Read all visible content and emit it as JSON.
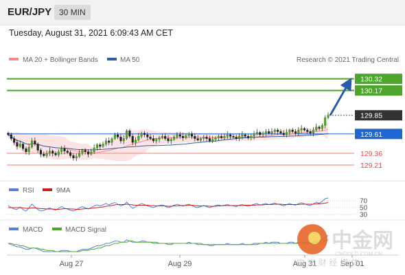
{
  "header": {
    "symbol": "EUR/JPY",
    "timeframe": "30 MIN"
  },
  "datetime": "Tuesday, August 31, 2021 6:09:43 AM CET",
  "copyright": "Research © 2021 Trading Central",
  "watermark": {
    "brand": "中金网",
    "site": "CNGOLD.COM.CN",
    "tagline": "中 文 财 经 媒 体"
  },
  "chart_data": [
    {
      "type": "candlestick",
      "legend": [
        {
          "label": "MA 20 + Bollinger Bands",
          "color": "#f08c8c"
        },
        {
          "label": "MA 50",
          "color": "#2e5f9e"
        }
      ],
      "ylim": [
        129.05,
        130.45
      ],
      "x_ticks": [
        "Aug 27",
        "Aug 29",
        "Aug 31",
        "Sep 01"
      ],
      "price_levels": [
        {
          "value": 130.32,
          "label": "130.32",
          "kind": "resistance",
          "color": "#4ea52b"
        },
        {
          "value": 130.17,
          "label": "130.17",
          "kind": "resistance",
          "color": "#4ea52b"
        },
        {
          "value": 129.85,
          "label": "129.85",
          "kind": "last",
          "color": "#333333"
        },
        {
          "value": 129.61,
          "label": "129.61",
          "kind": "pivot",
          "color": "#1f66d1"
        },
        {
          "value": 129.36,
          "label": "129.36",
          "kind": "support",
          "color": "#e0454a"
        },
        {
          "value": 129.21,
          "label": "129.21",
          "kind": "support",
          "color": "#e0454a"
        }
      ],
      "close": [
        129.6,
        129.55,
        129.5,
        129.45,
        129.48,
        129.42,
        129.38,
        129.44,
        129.52,
        129.48,
        129.4,
        129.35,
        129.33,
        129.36,
        129.39,
        129.36,
        129.34,
        129.38,
        129.42,
        129.39,
        129.37,
        129.33,
        129.3,
        129.32,
        129.36,
        129.4,
        129.38,
        129.35,
        129.38,
        129.43,
        129.47,
        129.45,
        129.48,
        129.52,
        129.5,
        129.55,
        129.6,
        129.57,
        129.52,
        129.55,
        129.65,
        129.58,
        129.5,
        129.53,
        129.58,
        129.62,
        129.6,
        129.57,
        129.55,
        129.52,
        129.54,
        129.56,
        129.58,
        129.55,
        129.52,
        129.54,
        129.57,
        129.6,
        129.58,
        129.56,
        129.59,
        129.61,
        129.58,
        129.55,
        129.53,
        129.55,
        129.57,
        129.55,
        129.52,
        129.54,
        129.56,
        129.58,
        129.56,
        129.58,
        129.6,
        129.58,
        129.57,
        129.55,
        129.58,
        129.6,
        129.58,
        129.56,
        129.58,
        129.61,
        129.63,
        129.6,
        129.62,
        129.64,
        129.62,
        129.64,
        129.66,
        129.64,
        129.62,
        129.6,
        129.63,
        129.66,
        129.64,
        129.62,
        129.66,
        129.68,
        129.66,
        129.64,
        129.62,
        129.66,
        129.7,
        129.68,
        129.72,
        129.82,
        129.85
      ]
    },
    {
      "type": "line",
      "legend": [
        {
          "label": "RSI",
          "color": "#5a7fd6"
        },
        {
          "label": "9MA",
          "color": "#cc1d1d"
        }
      ],
      "ylim": [
        20,
        80
      ],
      "levels": [
        70,
        50,
        30
      ],
      "series": [
        {
          "name": "RSI",
          "values": [
            56,
            50,
            46,
            45,
            52,
            44,
            40,
            49,
            60,
            52,
            44,
            40,
            42,
            46,
            49,
            45,
            43,
            48,
            53,
            48,
            46,
            42,
            40,
            44,
            49,
            53,
            50,
            46,
            50,
            55,
            58,
            55,
            58,
            62,
            58,
            62,
            65,
            60,
            55,
            58,
            66,
            56,
            48,
            52,
            58,
            62,
            59,
            55,
            53,
            50,
            54,
            56,
            58,
            54,
            50,
            53,
            57,
            60,
            57,
            54,
            58,
            60,
            56,
            52,
            50,
            53,
            56,
            53,
            50,
            53,
            56,
            58,
            55,
            57,
            59,
            56,
            55,
            53,
            57,
            59,
            56,
            54,
            57,
            60,
            62,
            57,
            60,
            62,
            59,
            61,
            63,
            60,
            58,
            55,
            59,
            62,
            59,
            57,
            62,
            64,
            61,
            58,
            56,
            61,
            66,
            63,
            68,
            76,
            78
          ]
        },
        {
          "name": "9MA",
          "values": [
            50,
            50,
            50,
            50,
            50,
            49,
            48,
            48,
            49,
            49,
            48,
            47,
            47,
            46,
            46,
            46,
            45,
            45,
            46,
            47,
            47,
            46,
            46,
            45,
            45,
            46,
            47,
            47,
            48,
            49,
            50,
            51,
            52,
            54,
            55,
            56,
            58,
            59,
            59,
            59,
            60,
            59,
            58,
            57,
            57,
            57,
            57,
            57,
            56,
            56,
            55,
            55,
            55,
            55,
            54,
            54,
            55,
            55,
            56,
            56,
            56,
            57,
            57,
            56,
            55,
            55,
            55,
            55,
            54,
            54,
            54,
            55,
            55,
            56,
            56,
            56,
            56,
            56,
            56,
            56,
            57,
            57,
            57,
            57,
            58,
            58,
            58,
            59,
            59,
            59,
            60,
            60,
            60,
            59,
            59,
            59,
            59,
            59,
            59,
            60,
            60,
            60,
            60,
            60,
            61,
            61,
            62,
            63,
            65
          ]
        }
      ]
    },
    {
      "type": "line",
      "legend": [
        {
          "label": "MACD",
          "color": "#5a7fd6"
        },
        {
          "label": "MACD Signal",
          "color": "#4ea52b"
        }
      ],
      "series": [
        {
          "name": "MACD",
          "values": [
            0.02,
            0.01,
            0.0,
            -0.01,
            -0.01,
            -0.02,
            -0.03,
            -0.03,
            -0.02,
            -0.02,
            -0.03,
            -0.04,
            -0.05,
            -0.05,
            -0.05,
            -0.05,
            -0.05,
            -0.05,
            -0.04,
            -0.04,
            -0.04,
            -0.05,
            -0.05,
            -0.05,
            -0.04,
            -0.03,
            -0.03,
            -0.03,
            -0.02,
            -0.01,
            0.0,
            0.0,
            0.01,
            0.02,
            0.02,
            0.03,
            0.04,
            0.04,
            0.03,
            0.03,
            0.05,
            0.04,
            0.03,
            0.03,
            0.03,
            0.04,
            0.04,
            0.03,
            0.03,
            0.02,
            0.02,
            0.02,
            0.02,
            0.02,
            0.01,
            0.01,
            0.02,
            0.02,
            0.02,
            0.02,
            0.02,
            0.03,
            0.02,
            0.02,
            0.01,
            0.01,
            0.01,
            0.01,
            0.0,
            0.0,
            0.01,
            0.01,
            0.01,
            0.01,
            0.02,
            0.01,
            0.01,
            0.01,
            0.01,
            0.02,
            0.01,
            0.01,
            0.01,
            0.02,
            0.02,
            0.02,
            0.02,
            0.03,
            0.02,
            0.03,
            0.03,
            0.03,
            0.02,
            0.02,
            0.02,
            0.03,
            0.03,
            0.02,
            0.03,
            0.03,
            0.03,
            0.03,
            0.02,
            0.03,
            0.04,
            0.04,
            0.05,
            0.07,
            0.09
          ]
        },
        {
          "name": "MACD Signal",
          "values": [
            0.02,
            0.02,
            0.01,
            0.01,
            0.0,
            0.0,
            -0.01,
            -0.02,
            -0.02,
            -0.02,
            -0.02,
            -0.03,
            -0.03,
            -0.04,
            -0.04,
            -0.04,
            -0.05,
            -0.05,
            -0.05,
            -0.05,
            -0.05,
            -0.05,
            -0.05,
            -0.05,
            -0.05,
            -0.04,
            -0.04,
            -0.04,
            -0.03,
            -0.03,
            -0.02,
            -0.02,
            -0.01,
            0.0,
            0.0,
            0.01,
            0.02,
            0.02,
            0.03,
            0.03,
            0.03,
            0.04,
            0.04,
            0.03,
            0.03,
            0.03,
            0.03,
            0.03,
            0.03,
            0.03,
            0.03,
            0.02,
            0.02,
            0.02,
            0.02,
            0.02,
            0.02,
            0.02,
            0.02,
            0.02,
            0.02,
            0.02,
            0.02,
            0.02,
            0.02,
            0.02,
            0.01,
            0.01,
            0.01,
            0.01,
            0.01,
            0.01,
            0.01,
            0.01,
            0.01,
            0.01,
            0.01,
            0.01,
            0.01,
            0.01,
            0.01,
            0.01,
            0.01,
            0.01,
            0.01,
            0.02,
            0.02,
            0.02,
            0.02,
            0.02,
            0.02,
            0.02,
            0.02,
            0.02,
            0.02,
            0.02,
            0.02,
            0.02,
            0.02,
            0.02,
            0.02,
            0.02,
            0.02,
            0.02,
            0.03,
            0.03,
            0.03,
            0.04,
            0.05
          ]
        }
      ]
    }
  ]
}
